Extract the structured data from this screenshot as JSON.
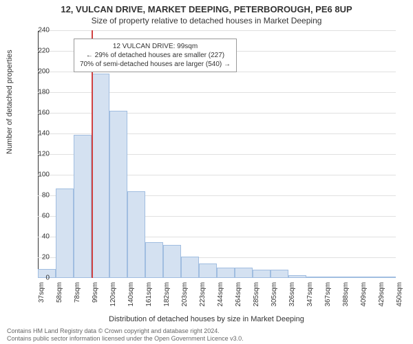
{
  "title": "12, VULCAN DRIVE, MARKET DEEPING, PETERBOROUGH, PE6 8UP",
  "subtitle": "Size of property relative to detached houses in Market Deeping",
  "y_label": "Number of detached properties",
  "x_label": "Distribution of detached houses by size in Market Deeping",
  "footer_line1": "Contains HM Land Registry data © Crown copyright and database right 2024.",
  "footer_line2": "Contains public sector information licensed under the Open Government Licence v3.0.",
  "chart": {
    "type": "histogram",
    "ylim": [
      0,
      240
    ],
    "ytick_step": 20,
    "background_color": "#ffffff",
    "grid_color": "#e0e0e0",
    "bar_fill": "#d4e1f1",
    "bar_border": "#a0bde0",
    "ref_line_color": "#d04040",
    "ref_line_x": 99,
    "annotation": {
      "line1": "12 VULCAN DRIVE: 99sqm",
      "line2": "← 29% of detached houses are smaller (227)",
      "line3": "70% of semi-detached houses are larger (540) →"
    },
    "x_ticks": [
      "37sqm",
      "58sqm",
      "78sqm",
      "99sqm",
      "120sqm",
      "140sqm",
      "161sqm",
      "182sqm",
      "203sqm",
      "223sqm",
      "244sqm",
      "264sqm",
      "285sqm",
      "305sqm",
      "326sqm",
      "347sqm",
      "367sqm",
      "388sqm",
      "409sqm",
      "429sqm",
      "450sqm"
    ],
    "values": [
      9,
      87,
      139,
      198,
      162,
      84,
      35,
      32,
      21,
      14,
      10,
      10,
      8,
      8,
      3,
      0,
      0,
      0,
      0,
      0
    ]
  }
}
